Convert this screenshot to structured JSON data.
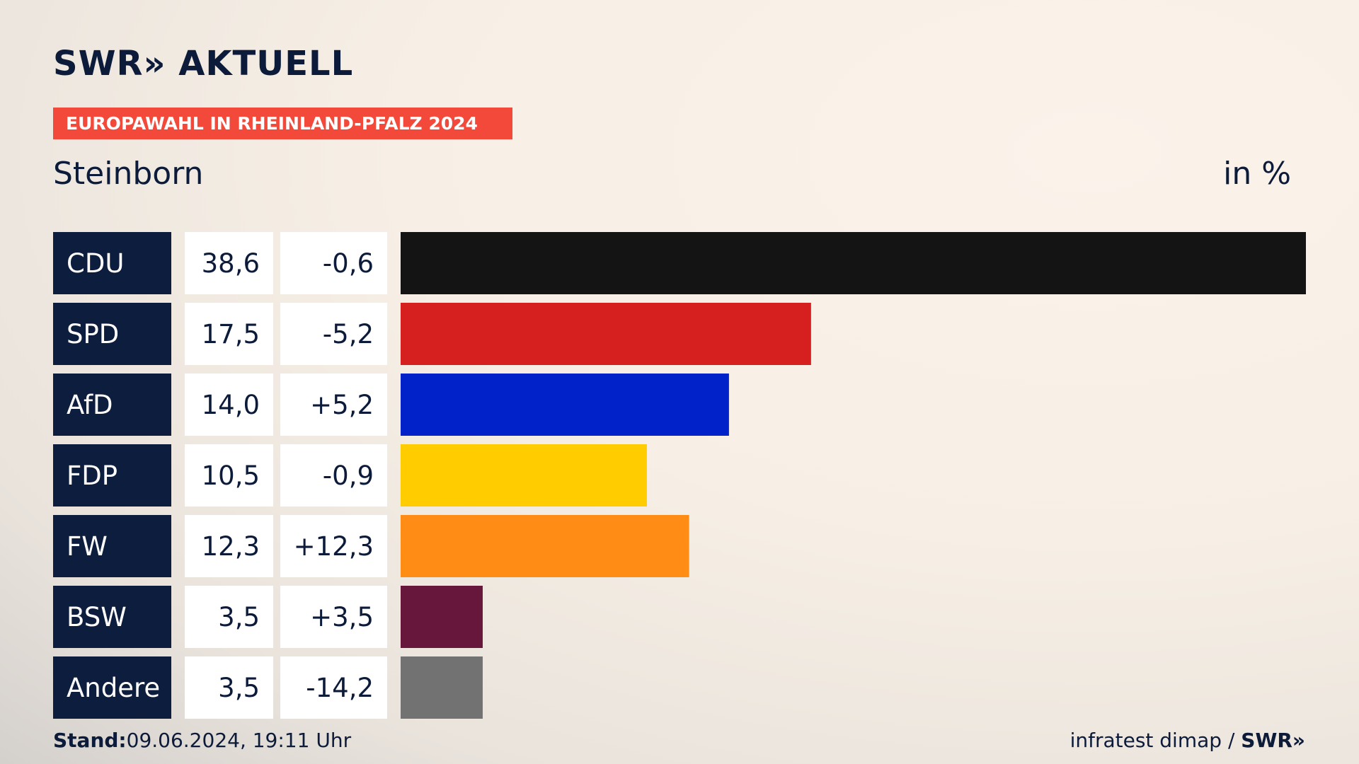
{
  "header": {
    "logo": "SWR» AKTUELL",
    "kicker": "EUROPAWAHL IN RHEINLAND-PFALZ 2024",
    "place": "Steinborn",
    "unit": "in %"
  },
  "colors": {
    "label_bg": "#0c1d3d",
    "cell_bg": "#ffffff",
    "kicker_bg": "#f2493a"
  },
  "chart_data": {
    "type": "bar",
    "orientation": "horizontal",
    "categories": [
      "CDU",
      "SPD",
      "AfD",
      "FDP",
      "FW",
      "BSW",
      "Andere"
    ],
    "values": [
      38.6,
      17.5,
      14.0,
      10.5,
      12.3,
      3.5,
      3.5
    ],
    "value_labels": [
      "38,6",
      "17,5",
      "14,0",
      "10,5",
      "12,3",
      "3,5",
      "3,5"
    ],
    "change_labels": [
      "-0,6",
      "-5,2",
      "+5,2",
      "-0,9",
      "+12,3",
      "+3,5",
      "-14,2"
    ],
    "bar_colors": [
      "#141414",
      "#d61f1f",
      "#0022c8",
      "#ffcc00",
      "#ff8c14",
      "#68173c",
      "#727272"
    ],
    "xlim": [
      0,
      38.6
    ],
    "grid": false,
    "title": "",
    "xlabel": "",
    "ylabel": ""
  },
  "footer": {
    "stand_label": "Stand:",
    "stand_value": "09.06.2024, 19:11 Uhr",
    "source": "infratest dimap /",
    "brand": "SWR»"
  }
}
